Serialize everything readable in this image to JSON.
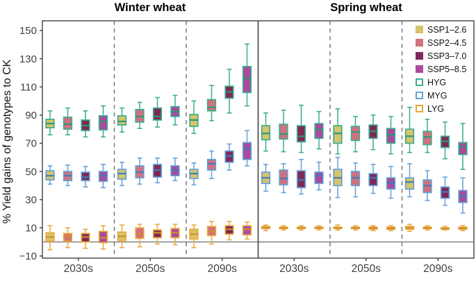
{
  "figure": {
    "panel_titles": {
      "winter": "Winter wheat",
      "spring": "Spring wheat"
    },
    "ylabel": "% Yield gains of genotypes to CK"
  },
  "chart_data": {
    "type": "boxplot",
    "title": "",
    "ylabel": "% Yield gains of genotypes to CK",
    "xlabel": "",
    "grid": false,
    "legend_position": "top-right-inside",
    "y_ticks": [
      150,
      130,
      110,
      90,
      70,
      50,
      30,
      10,
      -10
    ],
    "ylim": [
      -11.5,
      157
    ],
    "reference_line_y": 0,
    "panels": [
      "Winter wheat",
      "Spring wheat"
    ],
    "periods": [
      "2030s",
      "2050s",
      "2090s"
    ],
    "scenarios": [
      {
        "label": "SSP1–2.6",
        "fill": "#d6c46a"
      },
      {
        "label": "SSP2–4.5",
        "fill": "#d2707e"
      },
      {
        "label": "SSP3–7.0",
        "fill": "#7e2a55"
      },
      {
        "label": "SSP5–8.5",
        "fill": "#a94a9d"
      }
    ],
    "groups": [
      {
        "label": "HYG",
        "color": "#3cae90",
        "median_color": "#2f9579"
      },
      {
        "label": "MYG",
        "color": "#64a1d8",
        "median_color": "#3f7cb8"
      },
      {
        "label": "LYG",
        "color": "#eaa83c",
        "median_color": "#cf8f2e"
      }
    ],
    "box_value_order": [
      "whisker_low",
      "q1",
      "median",
      "q3",
      "whisker_high"
    ],
    "boxes": {
      "Winter wheat": {
        "2030s": {
          "HYG": [
            [
              76,
              81,
              84,
              87,
              93
            ],
            [
              76,
              80,
              83.5,
              88.5,
              95
            ],
            [
              74.5,
              79,
              82.5,
              86.5,
              93
            ],
            [
              74.5,
              79.5,
              85.5,
              89.5,
              96.5
            ]
          ],
          "MYG": [
            [
              41,
              44,
              47,
              50.5,
              54
            ],
            [
              40,
              43.5,
              47,
              50,
              54.5
            ],
            [
              39,
              43.5,
              46,
              49.5,
              53.5
            ],
            [
              38.5,
              43,
              47,
              50,
              55
            ]
          ],
          "LYG": [
            [
              -5.5,
              0.5,
              3.5,
              6.5,
              11.5
            ],
            [
              -4,
              0.5,
              3.5,
              6,
              10
            ],
            [
              -4.5,
              0,
              3.5,
              6,
              9
            ],
            [
              -5,
              -0.5,
              3,
              7.5,
              11.5
            ]
          ]
        },
        "2050s": {
          "HYG": [
            [
              78,
              83,
              85.5,
              89.5,
              95
            ],
            [
              80.5,
              85,
              89,
              94,
              99
            ],
            [
              81.5,
              86.5,
              89,
              95,
              102.5
            ],
            [
              83,
              89,
              92.5,
              96,
              104
            ]
          ],
          "MYG": [
            [
              40,
              44.5,
              48.5,
              51.5,
              56.5
            ],
            [
              41,
              45.5,
              49.5,
              54,
              59.5
            ],
            [
              42,
              46,
              51,
              55,
              59.5
            ],
            [
              43.5,
              47,
              51,
              54,
              59.5
            ]
          ],
          "LYG": [
            [
              -4,
              1,
              4,
              7,
              12
            ],
            [
              -3.5,
              2.5,
              5.5,
              10,
              12.5
            ],
            [
              -1.5,
              3,
              6.5,
              8.5,
              12.5
            ],
            [
              -2,
              3,
              6.5,
              9.5,
              12.5
            ]
          ]
        },
        "2090s": {
          "HYG": [
            [
              77,
              82,
              86.5,
              90.5,
              100
            ],
            [
              86,
              93,
              95.5,
              101,
              111
            ],
            [
              91.5,
              102,
              106.5,
              110.5,
              122.5
            ],
            [
              96.5,
              106,
              116,
              124.5,
              140.5
            ]
          ],
          "MYG": [
            [
              40.5,
              45,
              48.5,
              51.5,
              56
            ],
            [
              45,
              51,
              55.5,
              58.5,
              64.5
            ],
            [
              51,
              56.5,
              61,
              64.5,
              69.5
            ],
            [
              54,
              58.5,
              66,
              70.5,
              79
            ]
          ],
          "LYG": [
            [
              -4,
              2,
              5.5,
              9,
              12
            ],
            [
              -1.5,
              4.5,
              7.5,
              11,
              14.5
            ],
            [
              1.5,
              5.5,
              9,
              11.5,
              14.5
            ],
            [
              2,
              5,
              9,
              11.5,
              14
            ]
          ]
        }
      },
      "Spring wheat": {
        "2030s": {
          "HYG": [
            [
              64.5,
              72.5,
              77,
              82.5,
              91.5
            ],
            [
              64,
              73,
              76.5,
              83.5,
              93.5
            ],
            [
              63.5,
              71,
              75,
              82.5,
              97
            ],
            [
              66,
              73.5,
              80,
              84,
              92.5
            ]
          ],
          "MYG": [
            [
              36,
              41.5,
              45.5,
              49.5,
              55
            ],
            [
              35,
              40.5,
              45,
              51,
              55.5
            ],
            [
              34,
              38.5,
              44,
              50.5,
              58.5
            ],
            [
              37,
              41.5,
              47,
              49.5,
              56.5
            ]
          ],
          "LYG": [
            [
              8,
              9.5,
              10,
              11,
              12
            ],
            [
              8.5,
              9.5,
              10,
              10.5,
              11.5
            ],
            [
              8.5,
              9.5,
              10,
              10.5,
              11.5
            ],
            [
              8.5,
              9.5,
              10,
              10.5,
              11.5
            ]
          ]
        },
        "2050s": {
          "HYG": [
            [
              62.5,
              70,
              77,
              82.5,
              94.5
            ],
            [
              64,
              72,
              78,
              82,
              89
            ],
            [
              65.5,
              73.5,
              78.5,
              83,
              90
            ],
            [
              62.5,
              70,
              76,
              80.5,
              89
            ]
          ],
          "MYG": [
            [
              31.5,
              40,
              45.5,
              51.5,
              60
            ],
            [
              32,
              40,
              45.5,
              50,
              56
            ],
            [
              34.5,
              40,
              45.5,
              48.5,
              55
            ],
            [
              31,
              37.5,
              42,
              45.5,
              53.5
            ]
          ],
          "LYG": [
            [
              8.5,
              9.5,
              10,
              10.5,
              12
            ],
            [
              8.5,
              9.5,
              10,
              10.5,
              11.5
            ],
            [
              8,
              9,
              10,
              10.5,
              11.5
            ],
            [
              8,
              9,
              9.5,
              10.5,
              11.5
            ]
          ]
        },
        "2090s": {
          "HYG": [
            [
              63.5,
              70,
              75,
              80,
              95.5
            ],
            [
              63.5,
              69,
              74.5,
              78.5,
              87
            ],
            [
              59,
              67,
              71.5,
              75,
              85
            ],
            [
              51.5,
              62,
              67.5,
              70.5,
              84
            ]
          ],
          "MYG": [
            [
              32,
              37.5,
              42.5,
              45.5,
              55.5
            ],
            [
              29.5,
              35,
              40,
              44,
              50.5
            ],
            [
              26,
              31,
              35.5,
              39,
              46
            ],
            [
              20.5,
              28,
              32.5,
              36.5,
              45.5
            ]
          ],
          "LYG": [
            [
              7.5,
              9,
              10,
              11,
              12.5
            ],
            [
              8.5,
              9.5,
              10,
              10.5,
              11.5
            ],
            [
              8.5,
              9,
              9.5,
              10,
              11
            ],
            [
              8,
              9,
              9.5,
              10.5,
              11.5
            ]
          ]
        }
      }
    },
    "layout_colors": {
      "panel_border": "#333333",
      "axis_text": "#404040",
      "dashed_divider": "#7a7a7a",
      "panel_separator": "#4d4d4d",
      "zero_line": "#7a7a7a"
    }
  }
}
